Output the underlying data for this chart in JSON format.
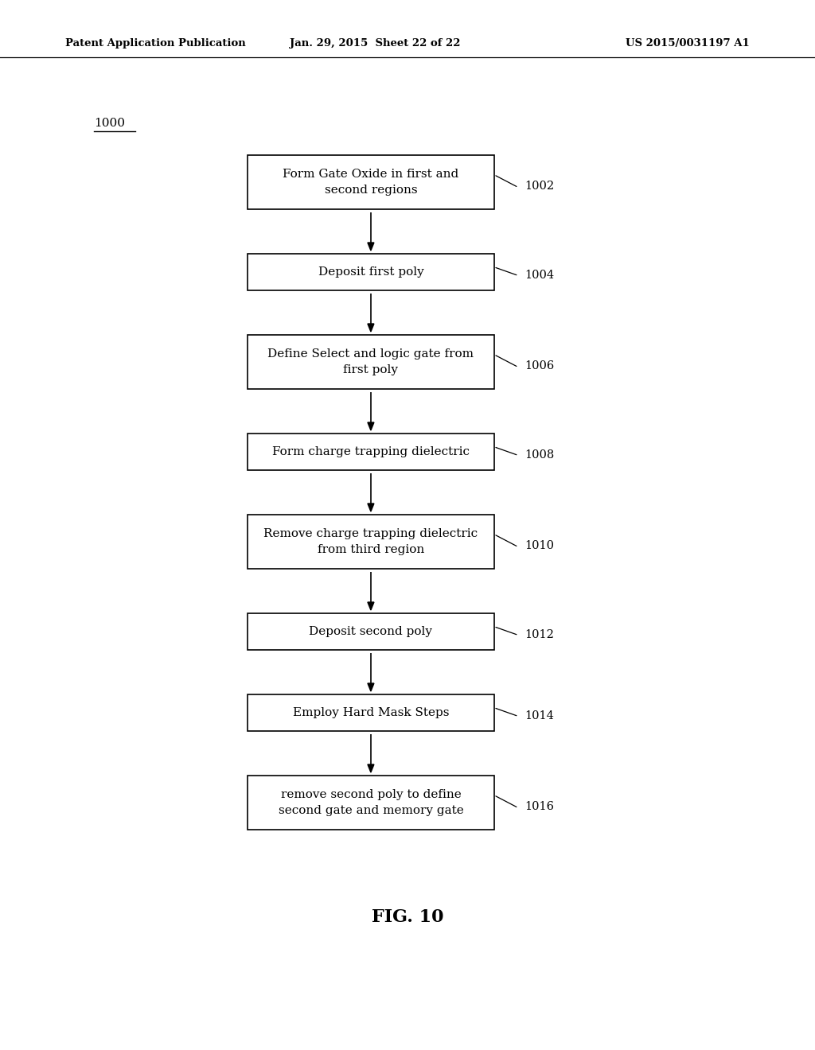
{
  "header_left": "Patent Application Publication",
  "header_mid": "Jan. 29, 2015  Sheet 22 of 22",
  "header_right": "US 2015/0031197 A1",
  "diagram_label": "1000",
  "figure_caption": "FIG. 10",
  "steps": [
    {
      "label": "Form Gate Oxide in first and\nsecond regions",
      "number": "1002",
      "two_line": true
    },
    {
      "label": "Deposit first poly",
      "number": "1004",
      "two_line": false
    },
    {
      "label": "Define Select and logic gate from\nfirst poly",
      "number": "1006",
      "two_line": true
    },
    {
      "label": "Form charge trapping dielectric",
      "number": "1008",
      "two_line": false
    },
    {
      "label": "Remove charge trapping dielectric\nfrom third region",
      "number": "1010",
      "two_line": true
    },
    {
      "label": "Deposit second poly",
      "number": "1012",
      "two_line": false
    },
    {
      "label": "Employ Hard Mask Steps",
      "number": "1014",
      "two_line": false
    },
    {
      "label": "remove second poly to define\nsecond gate and memory gate",
      "number": "1016",
      "two_line": true
    }
  ],
  "background_color": "#ffffff",
  "box_face_color": "#ffffff",
  "box_edge_color": "#000000",
  "text_color": "#000000",
  "arrow_color": "#000000",
  "header_color": "#000000"
}
